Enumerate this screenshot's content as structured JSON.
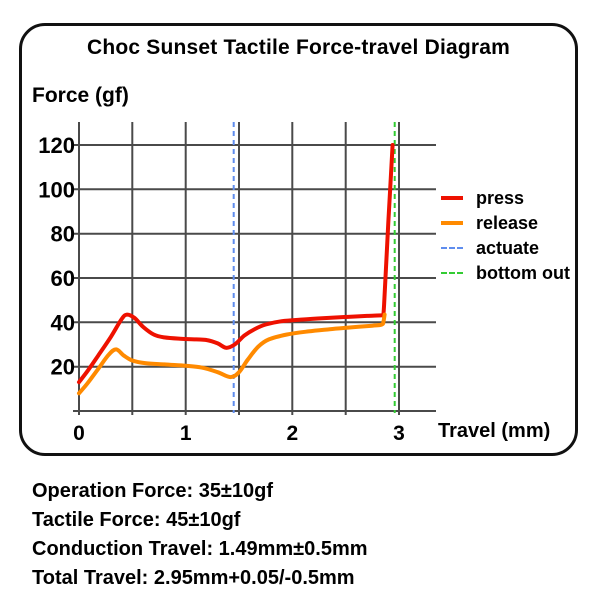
{
  "title": "Choc Sunset Tactile Force-travel Diagram",
  "y_axis_label": "Force (gf)",
  "x_axis_label": "Travel (mm)",
  "specs": [
    "Operation Force: 35±10gf",
    "Tactile Force: 45±10gf",
    "Conduction Travel: 1.49mm±0.5mm",
    "Total Travel: 2.95mm+0.05/-0.5mm"
  ],
  "colors": {
    "press": "#ee1100",
    "release": "#ff8a00",
    "actuate": "#5f8dee",
    "bottom_out": "#33cc33",
    "grid": "#4a4a4a",
    "text": "#000000"
  },
  "chart_data": {
    "type": "line",
    "title": "Choc Sunset Tactile Force-travel Diagram",
    "xlabel": "Travel (mm)",
    "ylabel": "Force (gf)",
    "xlim": [
      0,
      3.35
    ],
    "ylim": [
      0,
      130
    ],
    "grid": true,
    "legend_position": "right",
    "grid_color": "#4a4a4a",
    "x_gridlines": [
      0,
      0.5,
      1,
      1.5,
      2,
      2.5,
      3
    ],
    "x_tick_labels": [
      0,
      1,
      2,
      3
    ],
    "y_gridlines": [
      0,
      20,
      40,
      60,
      80,
      100,
      120
    ],
    "y_tick_labels": [
      20,
      40,
      60,
      80,
      100,
      120
    ],
    "series": [
      {
        "name": "press",
        "color": "#ee1100",
        "points": [
          [
            0,
            13
          ],
          [
            0.08,
            18
          ],
          [
            0.18,
            25
          ],
          [
            0.3,
            33.5
          ],
          [
            0.4,
            41.5
          ],
          [
            0.45,
            43.5
          ],
          [
            0.52,
            42
          ],
          [
            0.6,
            38
          ],
          [
            0.7,
            34.5
          ],
          [
            0.8,
            33.2
          ],
          [
            0.95,
            32.6
          ],
          [
            1.1,
            32.3
          ],
          [
            1.2,
            32
          ],
          [
            1.3,
            30.5
          ],
          [
            1.38,
            28.5
          ],
          [
            1.46,
            30
          ],
          [
            1.55,
            34
          ],
          [
            1.65,
            37
          ],
          [
            1.75,
            39
          ],
          [
            1.9,
            40.5
          ],
          [
            2.1,
            41.3
          ],
          [
            2.3,
            41.9
          ],
          [
            2.5,
            42.4
          ],
          [
            2.7,
            42.9
          ],
          [
            2.84,
            43.2
          ],
          [
            2.85,
            43.3
          ],
          [
            2.86,
            48
          ],
          [
            2.9,
            85
          ],
          [
            2.94,
            120
          ]
        ]
      },
      {
        "name": "release",
        "color": "#ff8a00",
        "points": [
          [
            0,
            8
          ],
          [
            0.08,
            12.5
          ],
          [
            0.18,
            19
          ],
          [
            0.28,
            25.5
          ],
          [
            0.35,
            27.8
          ],
          [
            0.42,
            25
          ],
          [
            0.5,
            22.8
          ],
          [
            0.62,
            21.6
          ],
          [
            0.8,
            21
          ],
          [
            1.0,
            20.4
          ],
          [
            1.15,
            19.6
          ],
          [
            1.3,
            17.5
          ],
          [
            1.42,
            15.3
          ],
          [
            1.5,
            17.5
          ],
          [
            1.58,
            23
          ],
          [
            1.68,
            29
          ],
          [
            1.78,
            32.3
          ],
          [
            1.95,
            34.5
          ],
          [
            2.15,
            35.9
          ],
          [
            2.35,
            36.9
          ],
          [
            2.55,
            37.7
          ],
          [
            2.75,
            38.5
          ],
          [
            2.84,
            39
          ],
          [
            2.855,
            40.5
          ],
          [
            2.865,
            43.5
          ]
        ]
      }
    ],
    "markers": [
      {
        "name": "actuate",
        "x": 1.45,
        "color": "#5f8dee",
        "style": "dashed"
      },
      {
        "name": "bottom out",
        "x": 2.96,
        "color": "#33cc33",
        "style": "dashed"
      }
    ],
    "legend": [
      {
        "label": "press",
        "color": "#ee1100",
        "style": "solid"
      },
      {
        "label": "release",
        "color": "#ff8a00",
        "style": "solid"
      },
      {
        "label": "actuate",
        "color": "#5f8dee",
        "style": "dashed"
      },
      {
        "label": "bottom out",
        "color": "#33cc33",
        "style": "dashed"
      }
    ]
  }
}
